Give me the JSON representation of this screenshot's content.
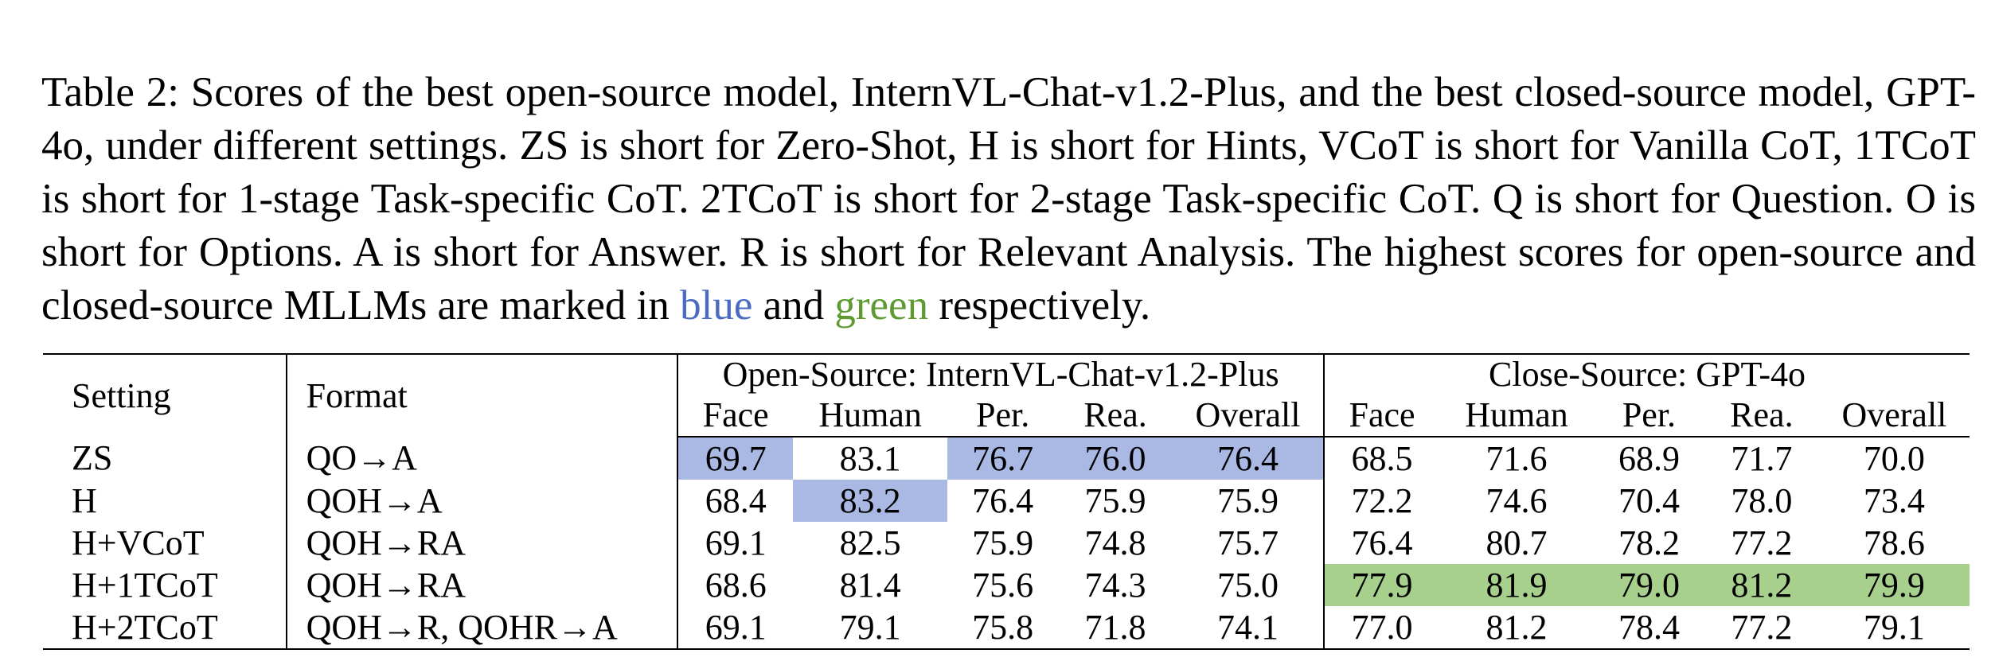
{
  "caption": {
    "main": "Table 2: Scores of the best open-source model, InternVL-Chat-v1.2-Plus, and the best closed-source model, GPT-4o, under different settings.  ZS is short for Zero-Shot, H is short for Hints, VCoT is short for Vanilla CoT, 1TCoT is short for 1-stage Task-specific CoT. 2TCoT is short for 2-stage Task-specific CoT. Q is short for Question. O is short for Options. A is short for Answer. R is short for Relevant Analysis.  The highest scores for open-source and closed-source MLLMs are marked in ",
    "blue_word": "blue",
    "and_word": " and ",
    "green_word": "green",
    "end": " respectively."
  },
  "highlight_colors": {
    "open_best": "#a9b9e4",
    "closed_best": "#a7d08c"
  },
  "table": {
    "col_setting": "Setting",
    "col_format": "Format",
    "group_open": "Open-Source: InternVL-Chat-v1.2-Plus",
    "group_close": "Close-Source: GPT-4o",
    "sub_headers": [
      "Face",
      "Human",
      "Per.",
      "Rea.",
      "Overall"
    ],
    "rows": [
      {
        "setting": "ZS",
        "format": "QO→A",
        "open": [
          "69.7",
          "83.1",
          "76.7",
          "76.0",
          "76.4"
        ],
        "close": [
          "68.5",
          "71.6",
          "68.9",
          "71.7",
          "70.0"
        ]
      },
      {
        "setting": "H",
        "format": "QOH→A",
        "open": [
          "68.4",
          "83.2",
          "76.4",
          "75.9",
          "75.9"
        ],
        "close": [
          "72.2",
          "74.6",
          "70.4",
          "78.0",
          "73.4"
        ]
      },
      {
        "setting": "H+VCoT",
        "format": "QOH→RA",
        "open": [
          "69.1",
          "82.5",
          "75.9",
          "74.8",
          "75.7"
        ],
        "close": [
          "76.4",
          "80.7",
          "78.2",
          "77.2",
          "78.6"
        ]
      },
      {
        "setting": "H+1TCoT",
        "format": "QOH→RA",
        "open": [
          "68.6",
          "81.4",
          "75.6",
          "74.3",
          "75.0"
        ],
        "close": [
          "77.9",
          "81.9",
          "79.0",
          "81.2",
          "79.9"
        ]
      },
      {
        "setting": "H+2TCoT",
        "format": "QOH→R, QOHR→A",
        "open": [
          "69.1",
          "79.1",
          "75.8",
          "71.8",
          "74.1"
        ],
        "close": [
          "77.0",
          "81.2",
          "78.4",
          "77.2",
          "79.1"
        ]
      }
    ]
  }
}
